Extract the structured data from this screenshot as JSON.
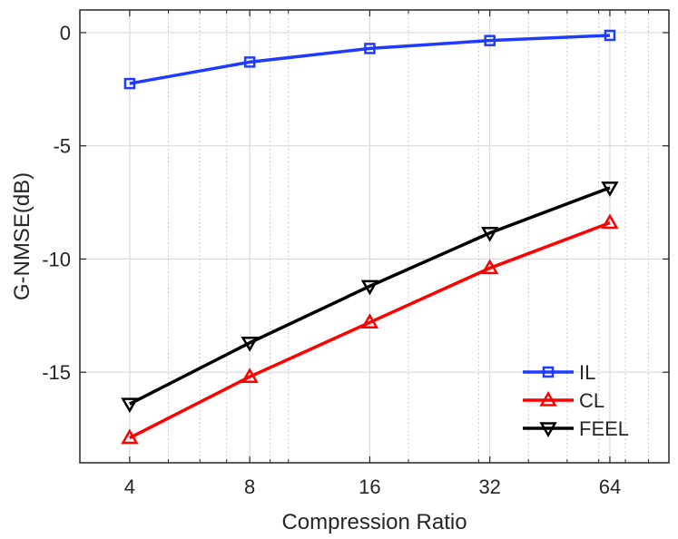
{
  "chart_data": {
    "type": "line",
    "title": "",
    "xlabel": "Compression Ratio",
    "ylabel": "G-NMSE(dB)",
    "x_scale": "log2",
    "x": [
      4,
      8,
      16,
      32,
      64
    ],
    "x_tick_labels": [
      "4",
      "8",
      "16",
      "32",
      "64"
    ],
    "xlim": [
      3,
      90
    ],
    "ylim": [
      -19,
      1
    ],
    "y_ticks": [
      0,
      -5,
      -10,
      -15
    ],
    "y_tick_labels": [
      "0",
      "-5",
      "-10",
      "-15"
    ],
    "grid": true,
    "minor_grid_x": true,
    "legend_position": "bottom-right",
    "series": [
      {
        "name": "IL",
        "color": "#1f3bff",
        "marker": "square",
        "values": [
          -2.25,
          -1.3,
          -0.7,
          -0.35,
          -0.12
        ]
      },
      {
        "name": "CL",
        "color": "#ff0000",
        "marker": "triangle-up",
        "values": [
          -17.9,
          -15.2,
          -12.8,
          -10.4,
          -8.4
        ]
      },
      {
        "name": "FEEL",
        "color": "#000000",
        "marker": "triangle-down",
        "values": [
          -16.4,
          -13.7,
          -11.2,
          -8.85,
          -6.85
        ]
      }
    ]
  }
}
